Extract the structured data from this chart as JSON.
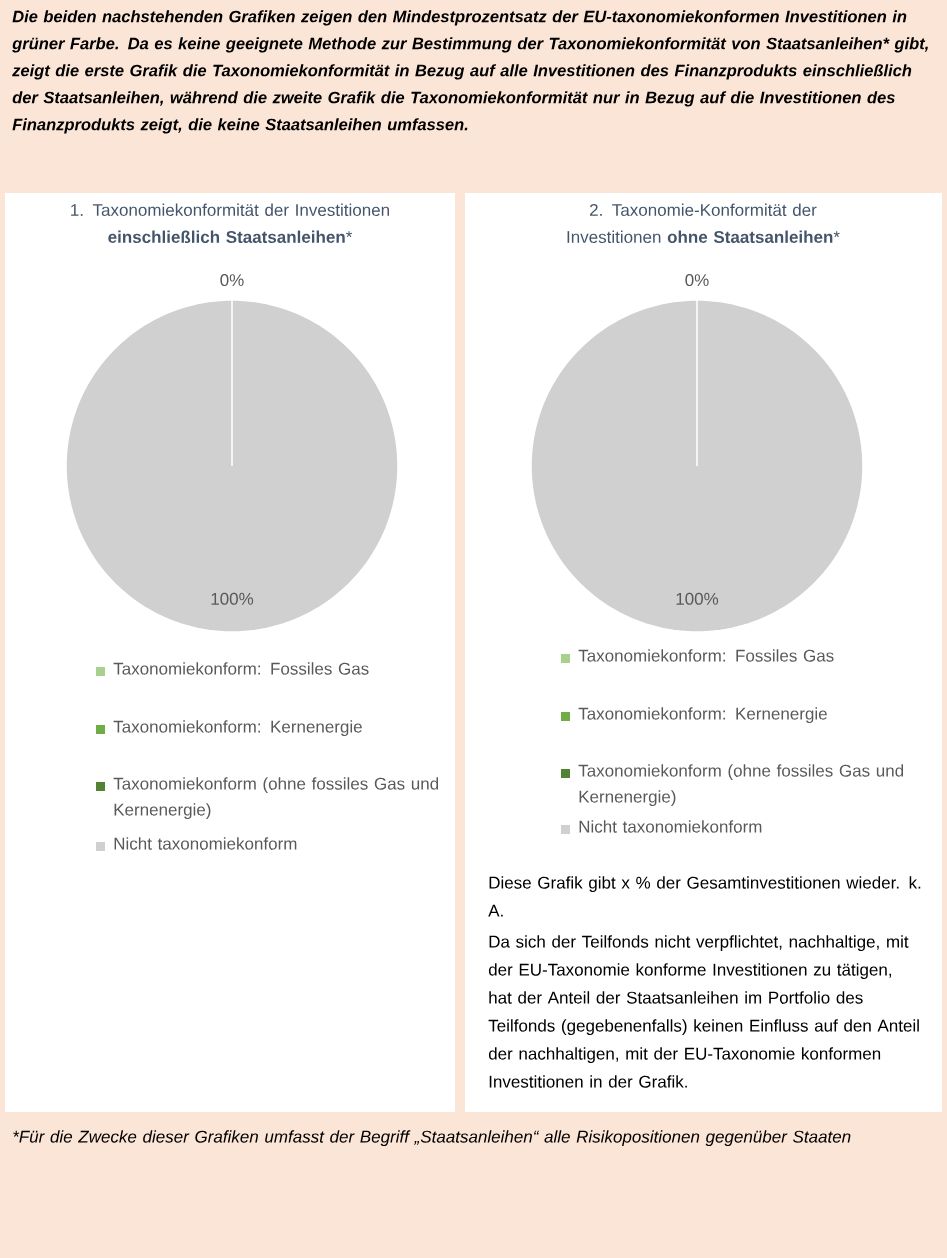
{
  "chart_data": [
    {
      "type": "pie",
      "title": "1. Taxonomiekonformität der Investitionen **einschließlich Staatsanleihen***",
      "categories": [
        "Taxonomiekonform: Fossiles Gas",
        "Taxonomiekonform: Kernenergie",
        "Taxonomiekonform (ohne fossiles Gas und Kernenergie)",
        "Nicht taxonomiekonform"
      ],
      "values": [
        0,
        0,
        0,
        100
      ],
      "colors": [
        "#a9d18e",
        "#70ad47",
        "#548235",
        "#d0d0d0"
      ],
      "value_labels": [
        "0%",
        null,
        null,
        "100%"
      ],
      "legend": "bottom",
      "annotations": [
        "Die beiden nachstehenden Grafiken zeigen den Mindestprozentsatz der EU-taxonomiekonformen Investitionen in grüner Farbe. Da es keine geeignete Methode zur Bestimmung der Taxonomiekonformität von Staatsanleihen* gibt, zeigt die erste Grafik die Taxonomiekonformität in Bezug auf alle Investitionen des Finanzprodukts einschließlich der Staatsanleihen, während die zweite Grafik die Taxonomiekonformität nur in Bezug auf die Investitionen des Finanzprodukts zeigt, die keine Staatsanleihen umfassen.",
        "*Für die Zwecke dieser Grafiken umfasst der Begriff „Staatsanleihen“ alle Risikopositionen gegenüber Staaten"
      ]
    },
    {
      "type": "pie",
      "title": "2. Taxonomie-Konformität der Investitionen **ohne Staatsanleihen***",
      "categories": [
        "Taxonomiekonform: Fossiles Gas",
        "Taxonomiekonform: Kernenergie",
        "Taxonomiekonform (ohne fossiles Gas und Kernenergie)",
        "Nicht taxonomiekonform"
      ],
      "values": [
        0,
        0,
        0,
        100
      ],
      "colors": [
        "#a9d18e",
        "#70ad47",
        "#548235",
        "#d0d0d0"
      ],
      "value_labels": [
        "0%",
        null,
        null,
        "100%"
      ],
      "legend": "bottom",
      "annotations": [
        "Diese Grafik gibt x % der Gesamtinvestitionen wieder. k. A.",
        "Da sich der Teilfonds nicht verpflichtet, nachhaltige, mit der EU-Taxonomie konforme Investitionen zu tätigen, hat der Anteil der Staatsanleihen im Portfolio des Teilfonds (gegebenenfalls) keinen Einfluss auf den Anteil der nachhaltigen, mit der EU-Taxonomie konformen Investitionen in der Grafik."
      ]
    }
  ]
}
